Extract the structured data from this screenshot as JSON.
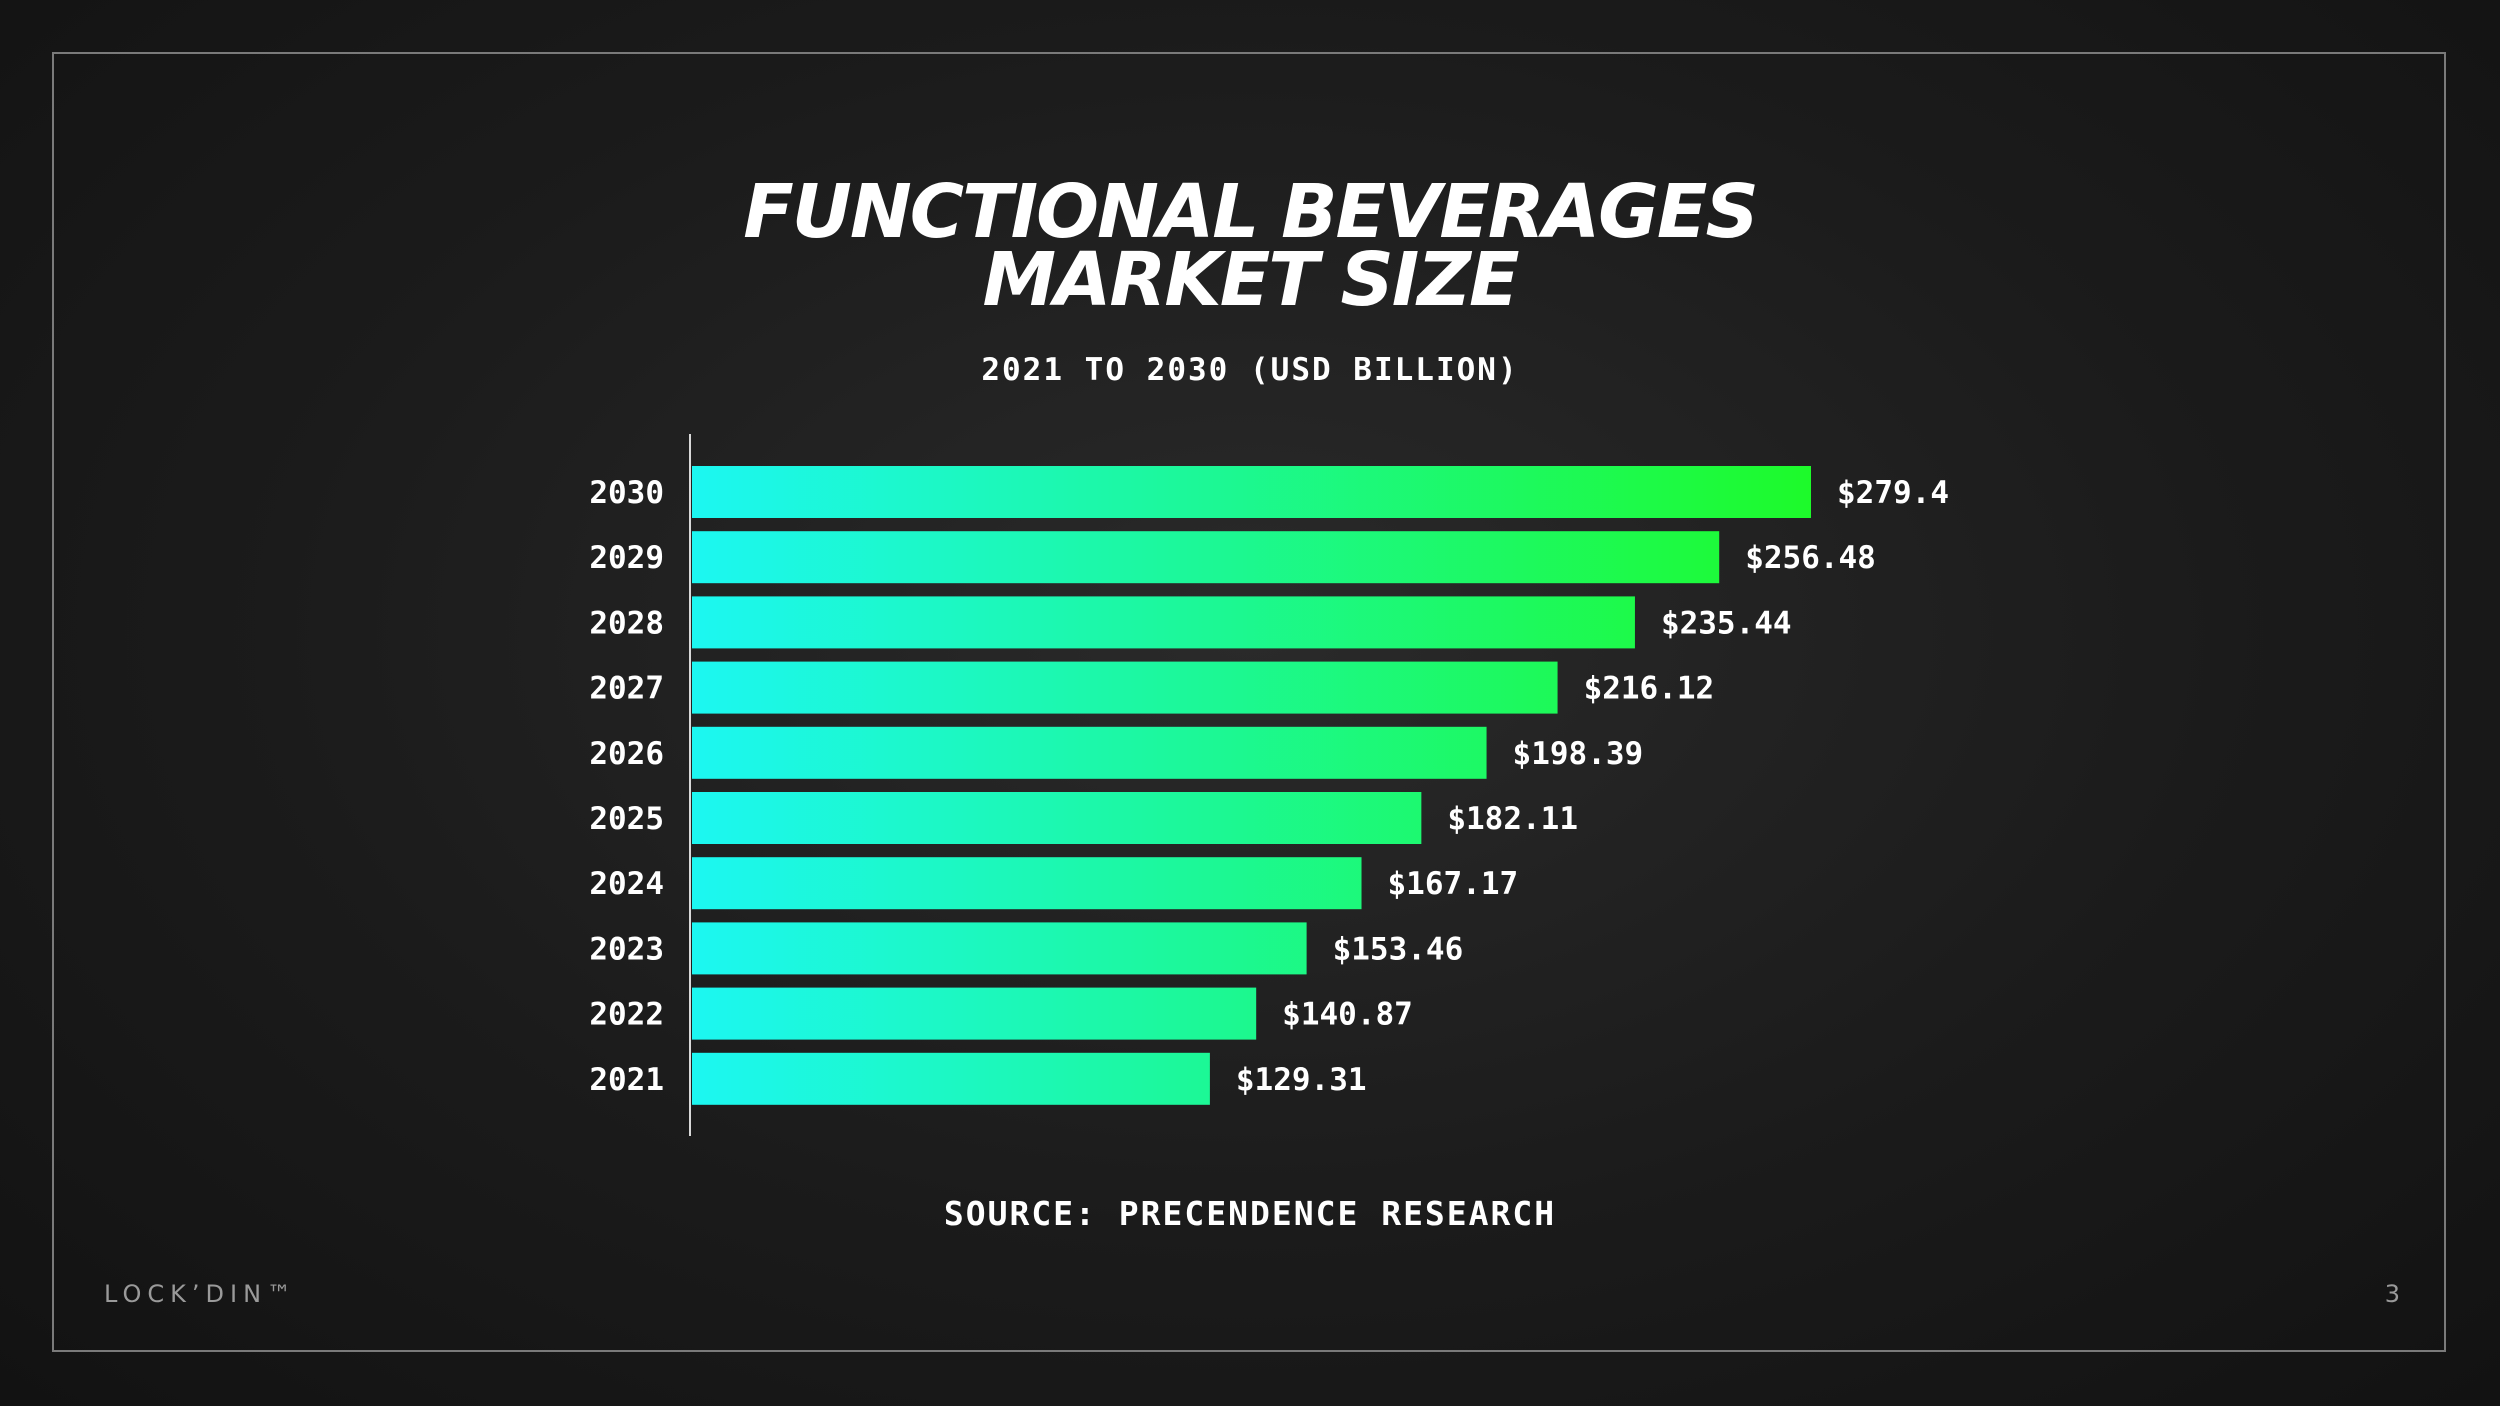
{
  "slide": {
    "title_line1": "FUNCTIONAL BEVERAGES",
    "title_line2": "MARKET SIZE",
    "subtitle": "2021 TO 2030 (USD BILLION)",
    "source": "SOURCE: PRECENDENCE RESEARCH",
    "brand": "LOCK’DIN™",
    "page_number": "3"
  },
  "colors": {
    "bar_start": "#1cf7f2",
    "bar_end": "#1dfa2a",
    "axis": "#d8d8d8"
  },
  "chart_data": {
    "type": "bar",
    "orientation": "horizontal",
    "title": "FUNCTIONAL BEVERAGES MARKET SIZE",
    "subtitle": "2021 TO 2030 (USD BILLION)",
    "categories": [
      "2030",
      "2029",
      "2028",
      "2027",
      "2026",
      "2025",
      "2024",
      "2023",
      "2022",
      "2021"
    ],
    "values": [
      279.4,
      256.48,
      235.44,
      216.12,
      198.39,
      182.11,
      167.17,
      153.46,
      140.87,
      129.31
    ],
    "value_labels": [
      "$279.4",
      "$256.48",
      "$235.44",
      "$216.12",
      "$198.39",
      "$182.11",
      "$167.17",
      "$153.46",
      "$140.87",
      "$129.31"
    ],
    "xlim": [
      0,
      279.4
    ],
    "grid": false,
    "legend": "none"
  }
}
